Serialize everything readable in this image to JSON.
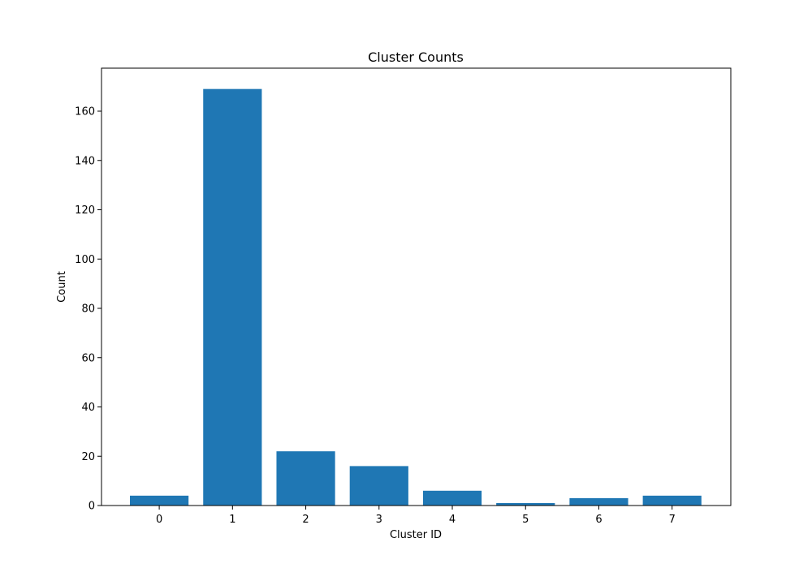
{
  "chart_data": {
    "type": "bar",
    "title": "Cluster Counts",
    "xlabel": "Cluster ID",
    "ylabel": "Count",
    "categories": [
      "0",
      "1",
      "2",
      "3",
      "4",
      "5",
      "6",
      "7"
    ],
    "values": [
      4,
      169,
      22,
      16,
      6,
      1,
      3,
      4
    ],
    "ylim": [
      0,
      177.45
    ],
    "yticks": [
      0,
      20,
      40,
      60,
      80,
      100,
      120,
      140,
      160
    ],
    "grid": false,
    "legend": "none",
    "bar_color": "#1f77b4"
  }
}
